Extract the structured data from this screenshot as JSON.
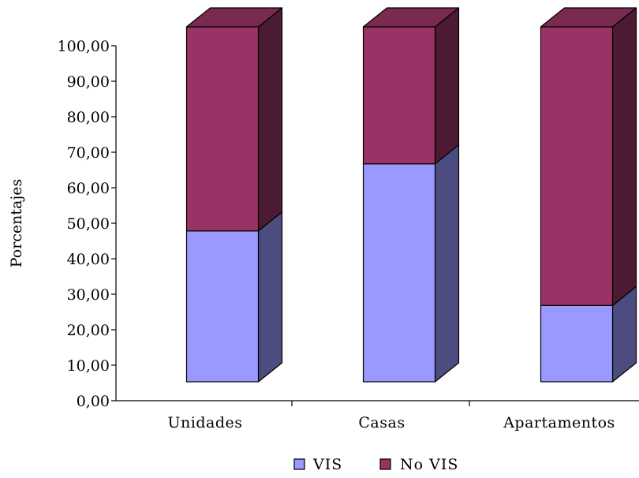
{
  "chart_data": {
    "type": "bar",
    "stacked": true,
    "three_d": true,
    "ylabel": "Porcentajes",
    "ylim": [
      0,
      100
    ],
    "y_ticks": [
      "0,00",
      "10,00",
      "20,00",
      "30,00",
      "40,00",
      "50,00",
      "60,00",
      "70,00",
      "80,00",
      "90,00",
      "100,00"
    ],
    "categories": [
      "Unidades",
      "Casas",
      "Apartamentos"
    ],
    "series": [
      {
        "name": "VIS",
        "values": [
          42.5,
          61.4,
          21.5
        ],
        "color": "#9999ff",
        "side_color": "#4c4c80",
        "top_color": "#a3a3f0"
      },
      {
        "name": "No VIS",
        "values": [
          57.5,
          38.6,
          78.5
        ],
        "color": "#993366",
        "side_color": "#4d1a33",
        "top_color": "#7a2950"
      }
    ],
    "legend": {
      "position": "bottom",
      "items": [
        "VIS",
        "No VIS"
      ]
    },
    "grid": false
  }
}
